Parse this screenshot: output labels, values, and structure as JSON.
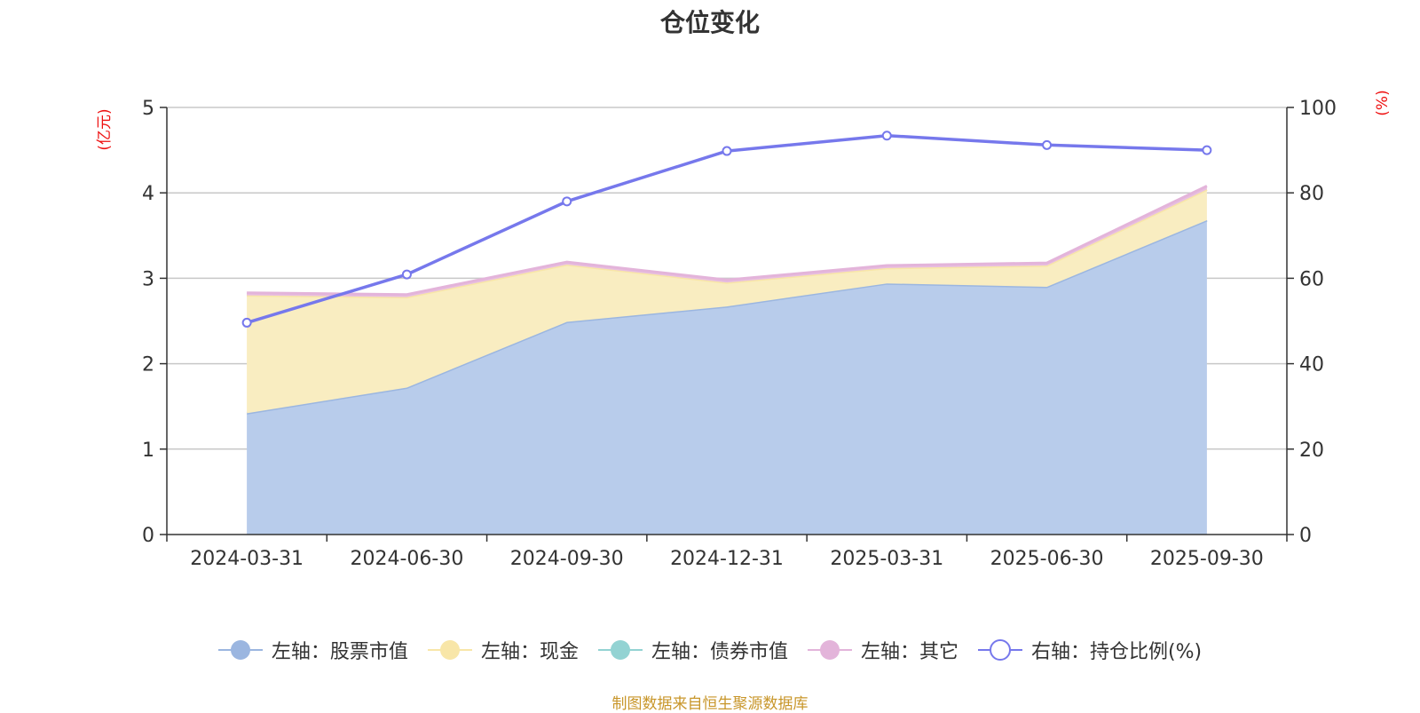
{
  "chart_data": {
    "type": "area",
    "title": "仓位变化",
    "categories": [
      "2024-03-31",
      "2024-06-30",
      "2024-09-30",
      "2024-12-31",
      "2025-03-31",
      "2025-06-30",
      "2025-09-30"
    ],
    "left_axis": {
      "label": "(亿元)",
      "ylim": [
        0,
        5
      ],
      "ticks": [
        "0",
        "1",
        "2",
        "3",
        "4",
        "5"
      ]
    },
    "right_axis": {
      "label": "(%)",
      "ylim": [
        0,
        100
      ],
      "ticks": [
        "0",
        "20",
        "40",
        "60",
        "80",
        "100"
      ]
    },
    "grid": true,
    "legend_position": "bottom",
    "series": [
      {
        "name": "左轴：股票市值",
        "axis": "left",
        "type": "stacked-area",
        "color": "#9bb6e0",
        "fill": "#b8cceb",
        "values": [
          1.42,
          1.72,
          2.49,
          2.67,
          2.94,
          2.9,
          3.68
        ]
      },
      {
        "name": "左轴：现金",
        "axis": "left",
        "type": "stacked-area",
        "color": "#f8e6a8",
        "fill": "#f9edc1",
        "values": [
          1.38,
          1.06,
          0.67,
          0.28,
          0.18,
          0.25,
          0.36
        ]
      },
      {
        "name": "左轴：债券市值",
        "axis": "left",
        "type": "stacked-area",
        "color": "#93d3d3",
        "fill": "#93d3d3",
        "values": [
          0,
          0,
          0,
          0,
          0,
          0,
          0
        ]
      },
      {
        "name": "左轴：其它",
        "axis": "left",
        "type": "stacked-area",
        "color": "#e3b4da",
        "fill": "#e8bfe0",
        "values": [
          0.03,
          0.03,
          0.03,
          0.03,
          0.03,
          0.03,
          0.04
        ]
      },
      {
        "name": "右轴：持仓比例(%)",
        "axis": "right",
        "type": "line",
        "color": "#7678ec",
        "values": [
          49.6,
          60.9,
          78.0,
          89.8,
          93.4,
          91.2,
          90.0
        ]
      }
    ]
  },
  "source_note": "制图数据来自恒生聚源数据库"
}
